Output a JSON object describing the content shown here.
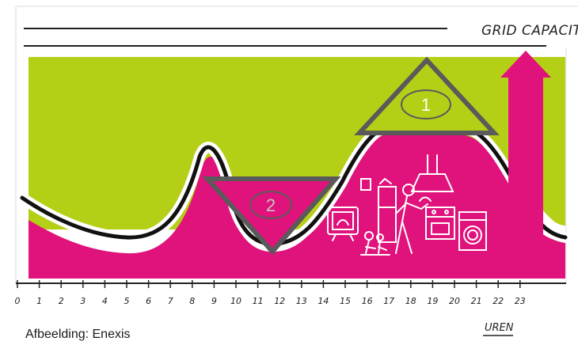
{
  "diagram": {
    "grid_label": "GRID CAPACITY",
    "x_axis_label": "UREN",
    "hour_ticks": [
      "0",
      "1",
      "2",
      "3",
      "4",
      "5",
      "6",
      "7",
      "8",
      "9",
      "10",
      "11",
      "12",
      "13",
      "14",
      "15",
      "16",
      "17",
      "18",
      "19",
      "20",
      "21",
      "22",
      "23"
    ],
    "markers": [
      {
        "id": "1",
        "shape": "triangle-up",
        "meaning": "peak"
      },
      {
        "id": "2",
        "shape": "triangle-down",
        "meaning": "valley"
      }
    ],
    "colors": {
      "green": "#b5cf17",
      "magenta": "#e0127b",
      "outline": "#5a5a5a",
      "line": "#111111"
    },
    "icons": [
      "washing-machine-icon",
      "stove-icon",
      "cooking-person-icon",
      "tv-icon",
      "family-icon",
      "cooker-hood-icon"
    ]
  },
  "caption": "Afbeelding: Enexis"
}
